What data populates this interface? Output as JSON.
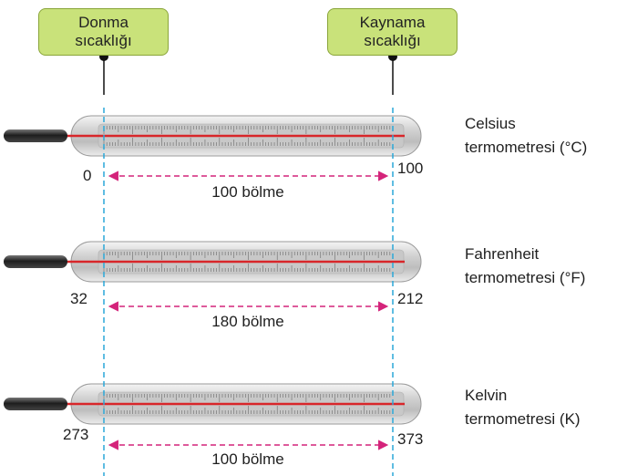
{
  "callouts": {
    "freezing": {
      "line1": "Donma",
      "line2": "sıcaklığı"
    },
    "boiling": {
      "line1": "Kaynama",
      "line2": "sıcaklığı"
    }
  },
  "thermometers": [
    {
      "name_line1": "Celsius",
      "name_line2": "termometresi (°C)",
      "low": "0",
      "high": "100",
      "divisions": "100 bölme"
    },
    {
      "name_line1": "Fahrenheit",
      "name_line2": "termometresi (°F)",
      "low": "32",
      "high": "212",
      "divisions": "180 bölme"
    },
    {
      "name_line1": "Kelvin",
      "name_line2": "termometresi (K)",
      "low": "273",
      "high": "373",
      "divisions": "100 bölme"
    }
  ],
  "colors": {
    "callout_fill": "#c9e27a",
    "guide_line": "#2aa7d8",
    "arrow": "#d4237a",
    "mercury": "#d8262a"
  }
}
